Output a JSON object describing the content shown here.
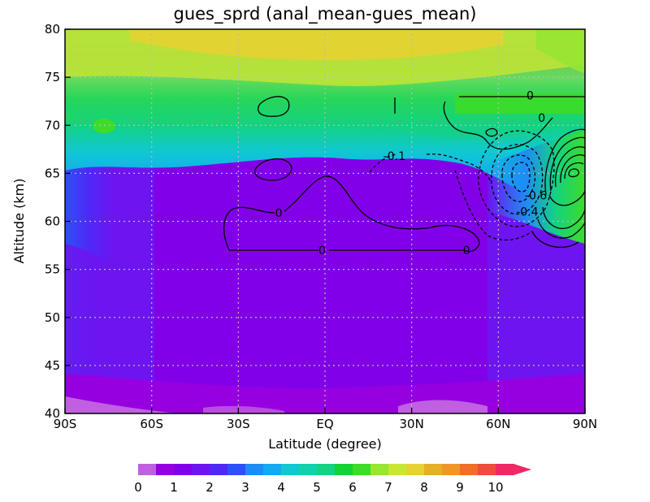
{
  "chart_data": {
    "type": "contour",
    "title": "gues_sprd (anal_mean-gues_mean)",
    "xlabel": "Latitude (degree)",
    "ylabel": "Altitude (km)",
    "xlim": [
      -90,
      90
    ],
    "ylim": [
      40,
      80
    ],
    "x_ticks": [
      {
        "v": -90,
        "label": "90S"
      },
      {
        "v": -60,
        "label": "60S"
      },
      {
        "v": -30,
        "label": "30S"
      },
      {
        "v": 0,
        "label": "EQ"
      },
      {
        "v": 30,
        "label": "30N"
      },
      {
        "v": 60,
        "label": "60N"
      },
      {
        "v": 90,
        "label": "90N"
      }
    ],
    "y_ticks": [
      {
        "v": 40,
        "label": "40"
      },
      {
        "v": 45,
        "label": "45"
      },
      {
        "v": 50,
        "label": "50"
      },
      {
        "v": 55,
        "label": "55"
      },
      {
        "v": 60,
        "label": "60"
      },
      {
        "v": 65,
        "label": "65"
      },
      {
        "v": 70,
        "label": "70"
      },
      {
        "v": 75,
        "label": "75"
      },
      {
        "v": 80,
        "label": "80"
      }
    ],
    "grid": true,
    "filled_field": {
      "name": "gues_sprd",
      "levels": [
        0,
        0.5,
        1,
        1.5,
        2,
        2.5,
        3,
        3.5,
        4,
        4.5,
        5,
        5.5,
        6,
        6.5,
        7,
        7.5,
        8,
        8.5,
        9,
        9.5,
        10
      ],
      "colors": [
        "#c060e0",
        "#9600e0",
        "#8200e8",
        "#6e14f0",
        "#5028f5",
        "#2c50fa",
        "#1e8cf5",
        "#14aaf0",
        "#10c8d2",
        "#10d2aa",
        "#14d282",
        "#14d232",
        "#3cdc28",
        "#96e632",
        "#c8e632",
        "#e6d232",
        "#e6af28",
        "#f09628",
        "#f06e28",
        "#f04b3c",
        "#f02864"
      ]
    },
    "contour_lines": {
      "name": "anal_mean-gues_mean",
      "labels": [
        {
          "text": "0",
          "x": 71,
          "y": 73.1
        },
        {
          "text": "0",
          "x": 75,
          "y": 70.8
        },
        {
          "text": "-0.1",
          "x": 24,
          "y": 66.8
        },
        {
          "text": "0",
          "x": -16,
          "y": 60.9
        },
        {
          "text": "0",
          "x": -1,
          "y": 57.0
        },
        {
          "text": "0",
          "x": 49,
          "y": 57.0
        },
        {
          "text": "-0.6",
          "x": 73,
          "y": 62.7
        },
        {
          "text": "-0.4",
          "x": 70,
          "y": 61.0
        }
      ]
    },
    "colorbar": {
      "labels": [
        "0",
        "1",
        "2",
        "3",
        "4",
        "5",
        "6",
        "7",
        "8",
        "9",
        "10"
      ],
      "extend": "max"
    }
  }
}
